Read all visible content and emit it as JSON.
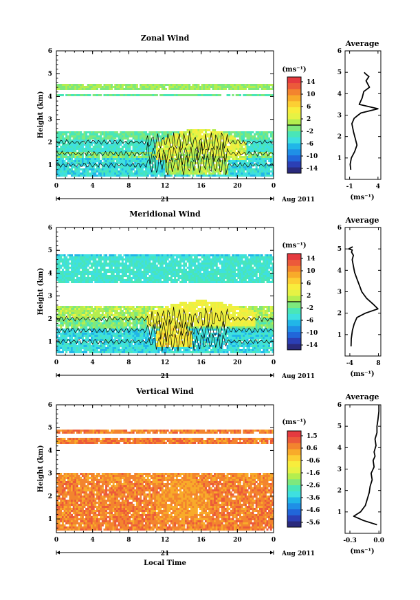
{
  "figure": {
    "xlabel": "Local Time",
    "date_day": "21",
    "date_month": "Aug 2011"
  },
  "chart_data": [
    {
      "type": "heatmap",
      "title": "Zonal Wind",
      "ylabel": "Height (km)",
      "x_ticks": [
        "0",
        "4",
        "8",
        "12",
        "16",
        "20",
        "0"
      ],
      "y_ticks": [
        "1",
        "2",
        "3",
        "4",
        "5",
        "6"
      ],
      "xlim": [
        0,
        24
      ],
      "ylim": [
        0.4,
        6.0
      ],
      "colorbar": {
        "unit": "(ms⁻¹)",
        "ticks": [
          "14",
          "10",
          "6",
          "2",
          "-2",
          "-6",
          "-10",
          "-14"
        ],
        "range": [
          -16,
          16
        ]
      },
      "layers": [
        {
          "ymin": 0.5,
          "ymax": 1.3,
          "v": -5
        },
        {
          "ymin": 1.3,
          "ymax": 1.6,
          "v": -1
        },
        {
          "ymin": 1.6,
          "ymax": 2.1,
          "v": -4
        },
        {
          "ymin": 2.1,
          "ymax": 2.5,
          "v": -2
        },
        {
          "ymin": 4.0,
          "ymax": 4.1,
          "v": -2
        },
        {
          "ymin": 4.3,
          "ymax": 4.6,
          "v": 0
        }
      ],
      "features": [
        {
          "x0": 11,
          "x1": 21,
          "ymin": 1.2,
          "ymax": 2.6,
          "v": 3
        },
        {
          "x0": 12,
          "x1": 19,
          "ymin": 0.6,
          "ymax": 1.6,
          "v": 1
        }
      ],
      "profile": {
        "title": "Average",
        "xlabel": "(ms⁻¹)",
        "x_ticks": [
          "-1",
          "4"
        ],
        "xlim": [
          -1.8,
          4.5
        ],
        "y_ticks": [
          "1",
          "2",
          "3",
          "4",
          "5",
          "6"
        ],
        "ylim": [
          0.0,
          6.0
        ],
        "x": [
          -0.8,
          -0.9,
          -0.7,
          -0.1,
          0.3,
          0.0,
          -0.3,
          -0.6,
          -0.2,
          0.5,
          1.0,
          4.0,
          0.7,
          1.2,
          1.5,
          2.5,
          1.9,
          2.4,
          1.7,
          1.6
        ],
        "y": [
          0.45,
          0.7,
          1.0,
          1.3,
          1.6,
          1.9,
          2.2,
          2.6,
          2.85,
          3.0,
          3.1,
          3.3,
          3.5,
          3.8,
          4.1,
          4.3,
          4.6,
          4.8,
          4.95,
          5.0
        ]
      }
    },
    {
      "type": "heatmap",
      "title": "Meridional Wind",
      "ylabel": "Height (km)",
      "x_ticks": [
        "0",
        "4",
        "8",
        "12",
        "16",
        "20",
        "0"
      ],
      "y_ticks": [
        "1",
        "2",
        "3",
        "4",
        "5",
        "6"
      ],
      "xlim": [
        0,
        24
      ],
      "ylim": [
        0.4,
        6.0
      ],
      "colorbar": {
        "unit": "(ms⁻¹)",
        "ticks": [
          "14",
          "10",
          "6",
          "2",
          "-2",
          "-6",
          "-10",
          "-14"
        ],
        "range": [
          -16,
          16
        ]
      },
      "layers": [
        {
          "ymin": 0.5,
          "ymax": 1.6,
          "v": -5
        },
        {
          "ymin": 1.6,
          "ymax": 2.0,
          "v": -1
        },
        {
          "ymin": 2.0,
          "ymax": 2.6,
          "v": 1
        },
        {
          "ymin": 3.6,
          "ymax": 4.7,
          "v": -4
        },
        {
          "ymin": 4.7,
          "ymax": 4.8,
          "v": -6
        }
      ],
      "features": [
        {
          "x0": 10,
          "x1": 22,
          "ymin": 1.7,
          "ymax": 2.8,
          "v": 4
        },
        {
          "x0": 11,
          "x1": 15,
          "ymin": 0.8,
          "ymax": 1.9,
          "v": 5
        }
      ],
      "profile": {
        "title": "Average",
        "xlabel": "(ms⁻¹)",
        "x_ticks": [
          "-4",
          "8"
        ],
        "xlim": [
          -6,
          9
        ],
        "y_ticks": [
          "1",
          "2",
          "3",
          "4",
          "5",
          "6"
        ],
        "ylim": [
          0.0,
          6.0
        ],
        "x": [
          -3.5,
          -3.4,
          -2.9,
          -2.2,
          -1.0,
          2.5,
          7.8,
          6.0,
          3.0,
          1.0,
          0.0,
          -1.0,
          -2.0,
          -2.5,
          -3.0,
          -2.5,
          -3.3,
          -3.0,
          -4.5,
          -2.8
        ],
        "y": [
          0.45,
          0.8,
          1.2,
          1.5,
          1.8,
          2.0,
          2.2,
          2.4,
          2.7,
          3.0,
          3.3,
          3.6,
          3.9,
          4.2,
          4.5,
          4.7,
          4.85,
          4.95,
          5.0,
          5.1
        ]
      }
    },
    {
      "type": "heatmap",
      "title": "Vertical Wind",
      "ylabel": "Height (km)",
      "x_ticks": [
        "0",
        "4",
        "8",
        "12",
        "16",
        "20",
        "0"
      ],
      "y_ticks": [
        "1",
        "2",
        "3",
        "4",
        "5",
        "6"
      ],
      "xlim": [
        0,
        24
      ],
      "ylim": [
        0.4,
        6.0
      ],
      "colorbar": {
        "unit": "(ms⁻¹)",
        "ticks": [
          "1.5",
          "0.6",
          "-0.6",
          "-1.6",
          "-2.6",
          "-3.6",
          "-4.6",
          "-5.6"
        ],
        "range": [
          -6,
          2
        ]
      },
      "layers": [
        {
          "ymin": 0.5,
          "ymax": 2.7,
          "v": 0.8
        },
        {
          "ymin": 2.7,
          "ymax": 3.0,
          "v": 0.6
        },
        {
          "ymin": 4.3,
          "ymax": 4.6,
          "v": 0.8
        },
        {
          "ymin": 4.7,
          "ymax": 4.9,
          "v": 0.8
        }
      ],
      "features": [
        {
          "x0": 11,
          "x1": 17,
          "ymin": 0.9,
          "ymax": 2.9,
          "v": 0.5
        }
      ],
      "profile": {
        "title": "Average",
        "xlabel": "(ms⁻¹)",
        "x_ticks": [
          "-0.3",
          "0.0"
        ],
        "xlim": [
          -0.35,
          0.02
        ],
        "y_ticks": [
          "1",
          "2",
          "3",
          "4",
          "5",
          "6"
        ],
        "ylim": [
          0.0,
          6.0
        ],
        "x": [
          -0.02,
          -0.16,
          -0.26,
          -0.19,
          -0.14,
          -0.12,
          -0.1,
          -0.09,
          -0.07,
          -0.08,
          -0.05,
          -0.06,
          -0.04,
          -0.05,
          -0.03,
          -0.04,
          -0.02,
          -0.02,
          -0.01,
          0.0,
          0.0
        ],
        "y": [
          0.4,
          0.6,
          0.8,
          1.0,
          1.3,
          1.6,
          1.9,
          2.2,
          2.5,
          2.8,
          3.1,
          3.4,
          3.6,
          3.8,
          4.1,
          4.4,
          4.7,
          5.0,
          5.3,
          5.7,
          6.0
        ]
      }
    }
  ]
}
